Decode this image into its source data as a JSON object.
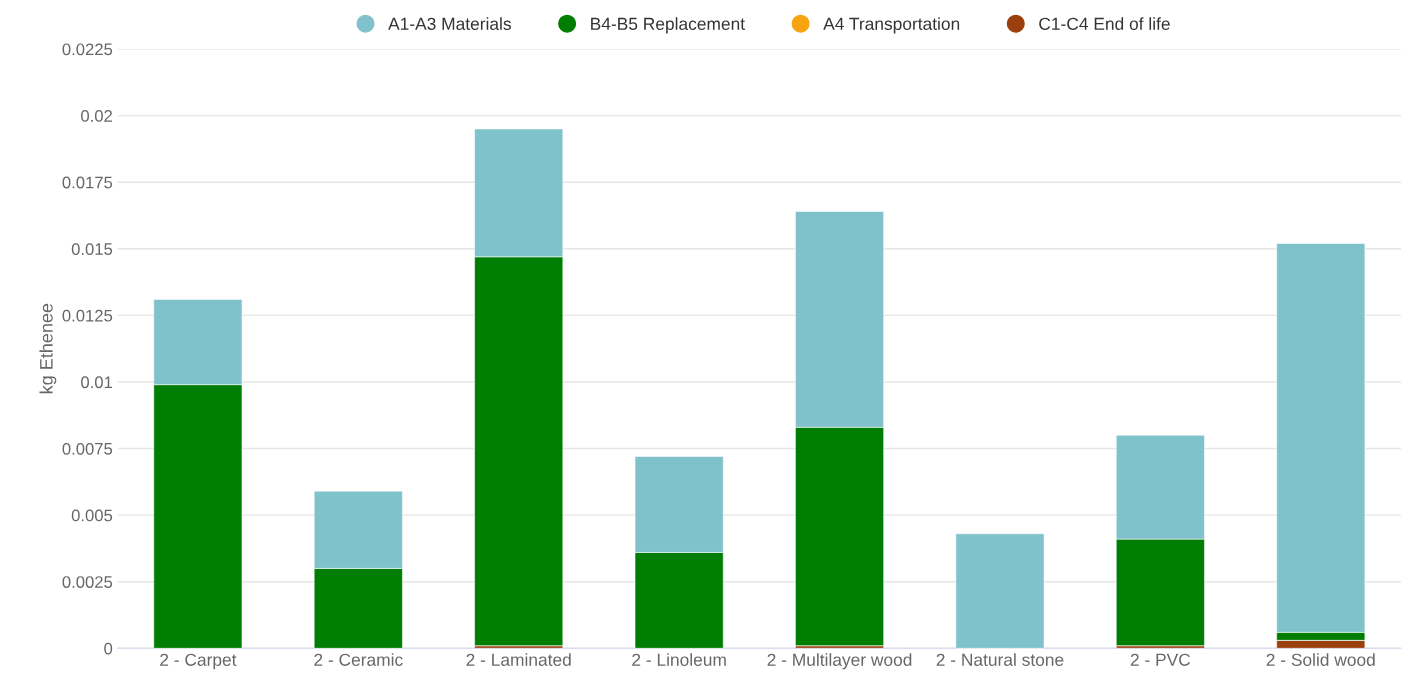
{
  "chart_data": {
    "type": "bar",
    "stacked": true,
    "ylabel": "kg Ethenee",
    "categories": [
      "2 - Carpet",
      "2 - Ceramic",
      "2 - Laminated",
      "2 - Linoleum",
      "2 - Multilayer wood",
      "2 - Natural stone",
      "2 - PVC",
      "2 - Solid wood"
    ],
    "series": [
      {
        "name": "C1-C4 End of life",
        "color": "#9b3f0c",
        "values": [
          0,
          0,
          0.0001,
          0,
          0.0001,
          0,
          0.0001,
          0.0003
        ]
      },
      {
        "name": "A4 Transportation",
        "color": "#f7a30f",
        "values": [
          0,
          0,
          0,
          0,
          0,
          0,
          0,
          0
        ]
      },
      {
        "name": "B4-B5 Replacement",
        "color": "#007e03",
        "values": [
          0.0099,
          0.003,
          0.0146,
          0.0036,
          0.0082,
          0,
          0.004,
          0.0003
        ]
      },
      {
        "name": "A1-A3 Materials",
        "color": "#80c2cb",
        "values": [
          0.0032,
          0.0029,
          0.0048,
          0.0036,
          0.0081,
          0.0043,
          0.0039,
          0.0146
        ]
      }
    ],
    "ylim": [
      0,
      0.0225
    ],
    "yticks": [
      0,
      0.0025,
      0.005,
      0.0075,
      0.01,
      0.0125,
      0.015,
      0.0175,
      0.02,
      0.0225
    ],
    "grid": "y",
    "legend": "top"
  }
}
